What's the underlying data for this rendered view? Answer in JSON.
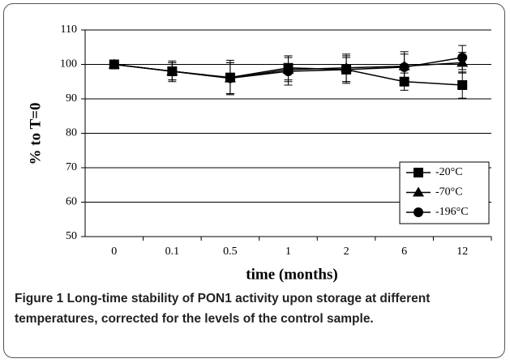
{
  "chart_data": {
    "type": "line",
    "categories": [
      "0",
      "0.1",
      "0.5",
      "1",
      "2",
      "6",
      "12"
    ],
    "series": [
      {
        "name": "-20°C",
        "color": "#000000",
        "marker": "square",
        "values": [
          100,
          98,
          96.2,
          99,
          98.5,
          95,
          94
        ],
        "errors": [
          0,
          3,
          5,
          3.5,
          3.5,
          2.5,
          3.8
        ]
      },
      {
        "name": "-70°C",
        "color": "#000000",
        "marker": "triangle",
        "values": [
          100,
          98,
          96,
          98.5,
          99,
          99.5,
          100.5
        ],
        "errors": [
          0,
          2.5,
          4.5,
          3.5,
          4,
          3.5,
          3
        ]
      },
      {
        "name": "-196°C",
        "color": "#000000",
        "marker": "circle",
        "values": [
          100,
          98,
          96,
          98,
          98.5,
          99.2,
          102
        ],
        "errors": [
          0,
          2.5,
          4.5,
          4,
          4,
          4.5,
          3.5
        ]
      }
    ],
    "ylim": [
      50,
      110
    ],
    "yticks": [
      50,
      60,
      70,
      80,
      90,
      100,
      110
    ],
    "grid": true,
    "xlabel": "time (months)",
    "ylabel": "% to T=0",
    "legend": "lower right"
  },
  "caption": {
    "label": "Figure 1",
    "text": "Long-time stability of PON1 activity upon storage at different temperatures, corrected for the levels of the control sample."
  }
}
